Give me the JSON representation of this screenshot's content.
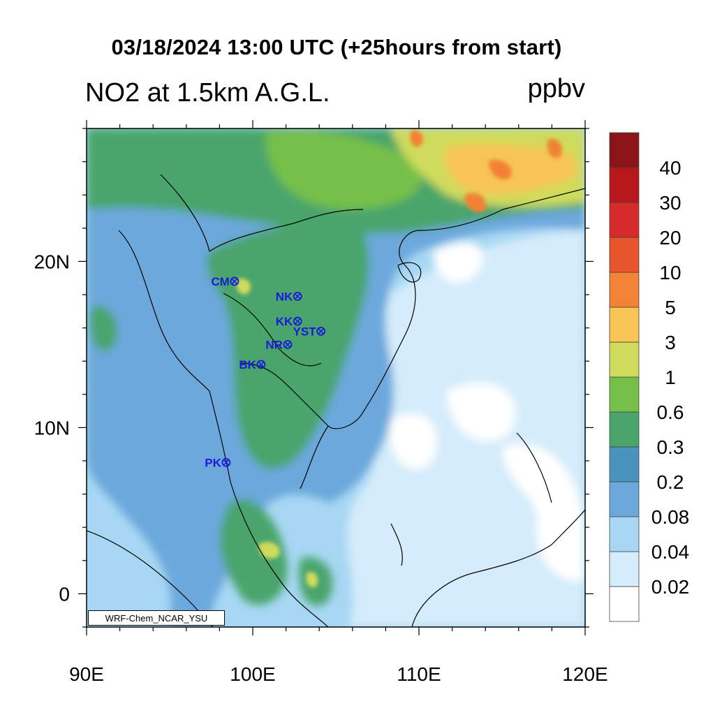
{
  "title": "03/18/2024 13:00 UTC (+25hours from start)",
  "variable_label": "NO2 at 1.5km A.G.L.",
  "units": "ppbv",
  "model_tag": "WRF-Chem_NCAR_YSU",
  "map": {
    "lon_range": [
      90,
      120
    ],
    "lat_range": [
      -2,
      28
    ],
    "x_ticks": [
      "90E",
      "100E",
      "110E",
      "120E"
    ],
    "x_tick_values": [
      90,
      100,
      110,
      120
    ],
    "y_ticks": [
      "0",
      "10N",
      "20N"
    ],
    "y_tick_values": [
      0,
      10,
      20
    ]
  },
  "stations": [
    {
      "name": "CM",
      "lon": 98.9,
      "lat": 18.8
    },
    {
      "name": "NK",
      "lon": 102.7,
      "lat": 17.9
    },
    {
      "name": "KK",
      "lon": 102.7,
      "lat": 16.4
    },
    {
      "name": "YST",
      "lon": 104.1,
      "lat": 15.8
    },
    {
      "name": "NR",
      "lon": 102.1,
      "lat": 15.0
    },
    {
      "name": "BK",
      "lon": 100.5,
      "lat": 13.8
    },
    {
      "name": "PK",
      "lon": 98.4,
      "lat": 7.9
    }
  ],
  "colorbar": {
    "levels": [
      "0.02",
      "0.04",
      "0.08",
      "0.2",
      "0.3",
      "0.6",
      "1",
      "3",
      "5",
      "10",
      "20",
      "30",
      "40"
    ],
    "colors": [
      "#ffffff",
      "#d4ecfb",
      "#a7d7f3",
      "#6ca8dc",
      "#4a93bd",
      "#4aa56c",
      "#76c04a",
      "#cfdb5c",
      "#f8c454",
      "#f38136",
      "#e8552c",
      "#d72a2a",
      "#b8171b",
      "#8c1418"
    ]
  }
}
